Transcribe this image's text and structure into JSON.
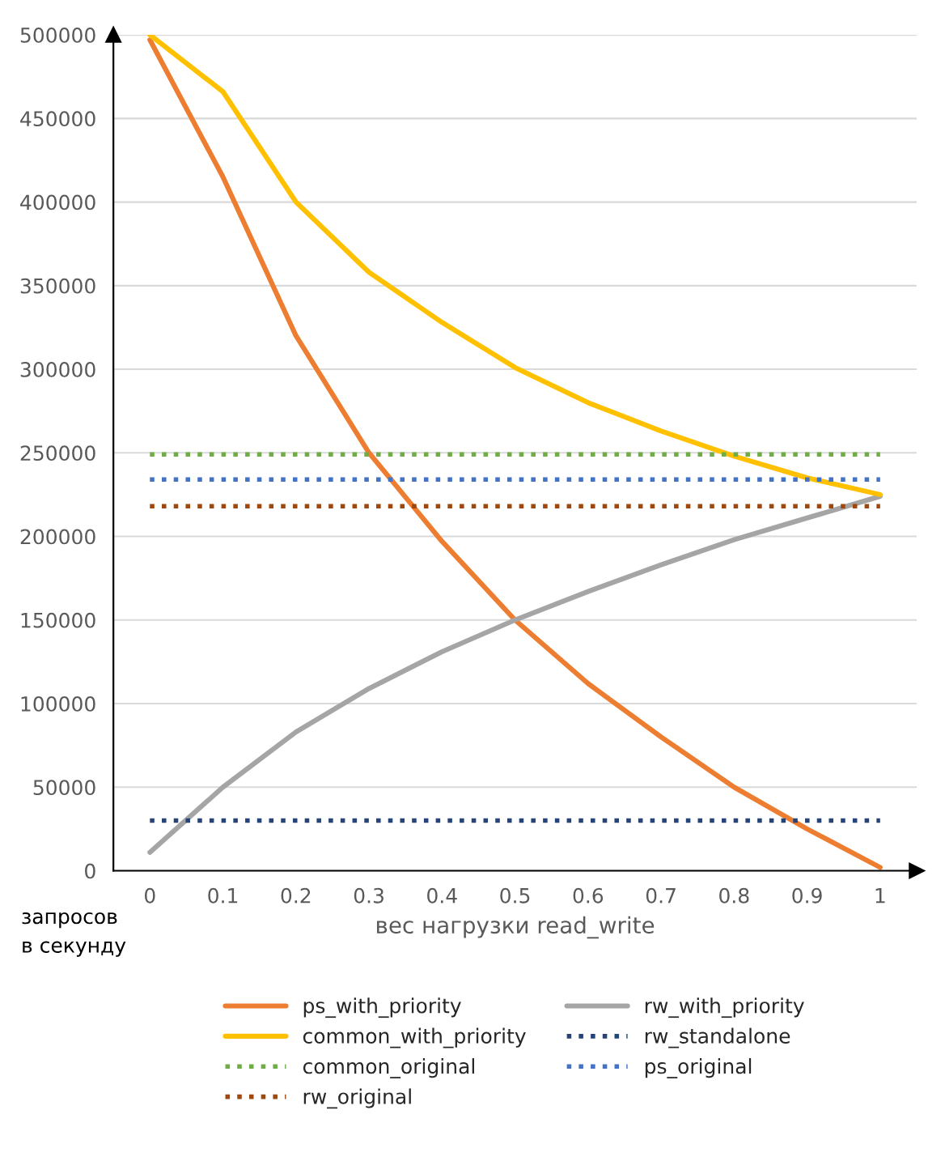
{
  "chart_data": {
    "type": "line",
    "xlabel": "вес нагрузки read_write",
    "ylabel": "запросов\nв секунду",
    "x": [
      0,
      0.1,
      0.2,
      0.3,
      0.4,
      0.5,
      0.6,
      0.7,
      0.8,
      0.9,
      1
    ],
    "series": [
      {
        "name": "ps_with_priority",
        "color": "#ed7d31",
        "line_style": "solid",
        "values": [
          497000,
          415000,
          320000,
          250000,
          197000,
          150000,
          112000,
          80000,
          50000,
          25000,
          2000
        ]
      },
      {
        "name": "rw_with_priority",
        "color": "#a5a5a5",
        "line_style": "solid",
        "values": [
          11000,
          50000,
          83000,
          109000,
          131000,
          150000,
          167000,
          183000,
          198000,
          211000,
          224000
        ]
      },
      {
        "name": "common_with_priority",
        "color": "#ffc000",
        "line_style": "solid",
        "values": [
          500000,
          466000,
          400000,
          358000,
          328000,
          301000,
          280000,
          263000,
          248000,
          235000,
          225000
        ]
      },
      {
        "name": "rw_standalone",
        "color": "#264478",
        "line_style": "dotted",
        "values": [
          30000,
          30000,
          30000,
          30000,
          30000,
          30000,
          30000,
          30000,
          30000,
          30000,
          30000
        ]
      },
      {
        "name": "common_original",
        "color": "#70ad47",
        "line_style": "dotted",
        "values": [
          249000,
          249000,
          249000,
          249000,
          249000,
          249000,
          249000,
          249000,
          249000,
          249000,
          249000
        ]
      },
      {
        "name": "ps_original",
        "color": "#4472c4",
        "line_style": "dotted",
        "values": [
          234000,
          234000,
          234000,
          234000,
          234000,
          234000,
          234000,
          234000,
          234000,
          234000,
          234000
        ]
      },
      {
        "name": "rw_original",
        "color": "#9e480e",
        "line_style": "dotted",
        "values": [
          218000,
          218000,
          218000,
          218000,
          218000,
          218000,
          218000,
          218000,
          218000,
          218000,
          218000
        ]
      }
    ],
    "xlim": [
      -0.05,
      1.05
    ],
    "ylim": [
      0,
      500000
    ],
    "xticks": [
      0,
      0.1,
      0.2,
      0.3,
      0.4,
      0.5,
      0.6,
      0.7,
      0.8,
      0.9,
      1
    ],
    "yticks": [
      0,
      50000,
      100000,
      150000,
      200000,
      250000,
      300000,
      350000,
      400000,
      450000,
      500000
    ],
    "grid": "y",
    "legend": "bottom",
    "marker": "none"
  }
}
